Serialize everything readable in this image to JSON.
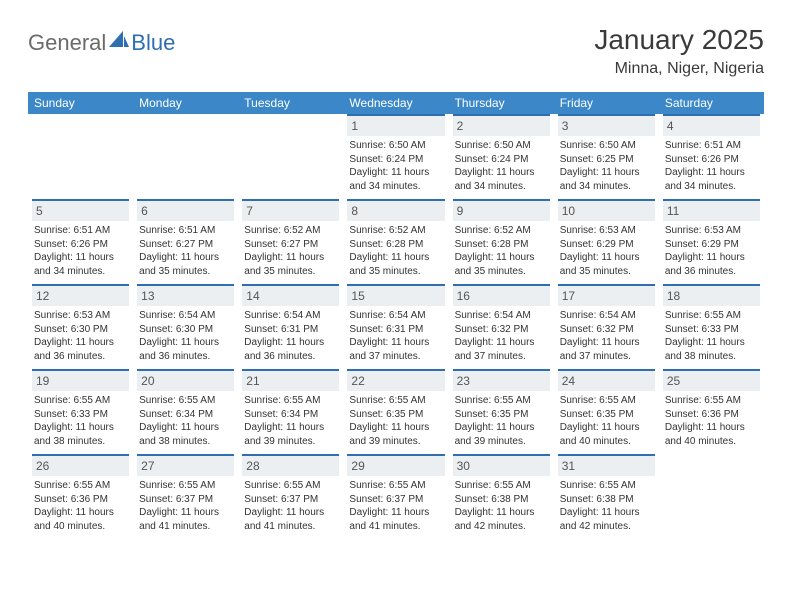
{
  "logo": {
    "text1": "General",
    "text2": "Blue"
  },
  "title": "January 2025",
  "location": "Minna, Niger, Nigeria",
  "colors": {
    "header_bg": "#3b87c8",
    "header_text": "#ffffff",
    "daynum_bg": "#eceff1",
    "daynum_border": "#2f6fb0",
    "logo_gray": "#6b6b6b",
    "logo_blue": "#2f6fb0",
    "text": "#333333"
  },
  "day_names": [
    "Sunday",
    "Monday",
    "Tuesday",
    "Wednesday",
    "Thursday",
    "Friday",
    "Saturday"
  ],
  "weeks": [
    [
      null,
      null,
      null,
      {
        "n": "1",
        "sr": "6:50 AM",
        "ss": "6:24 PM",
        "dl": "11 hours and 34 minutes."
      },
      {
        "n": "2",
        "sr": "6:50 AM",
        "ss": "6:24 PM",
        "dl": "11 hours and 34 minutes."
      },
      {
        "n": "3",
        "sr": "6:50 AM",
        "ss": "6:25 PM",
        "dl": "11 hours and 34 minutes."
      },
      {
        "n": "4",
        "sr": "6:51 AM",
        "ss": "6:26 PM",
        "dl": "11 hours and 34 minutes."
      }
    ],
    [
      {
        "n": "5",
        "sr": "6:51 AM",
        "ss": "6:26 PM",
        "dl": "11 hours and 34 minutes."
      },
      {
        "n": "6",
        "sr": "6:51 AM",
        "ss": "6:27 PM",
        "dl": "11 hours and 35 minutes."
      },
      {
        "n": "7",
        "sr": "6:52 AM",
        "ss": "6:27 PM",
        "dl": "11 hours and 35 minutes."
      },
      {
        "n": "8",
        "sr": "6:52 AM",
        "ss": "6:28 PM",
        "dl": "11 hours and 35 minutes."
      },
      {
        "n": "9",
        "sr": "6:52 AM",
        "ss": "6:28 PM",
        "dl": "11 hours and 35 minutes."
      },
      {
        "n": "10",
        "sr": "6:53 AM",
        "ss": "6:29 PM",
        "dl": "11 hours and 35 minutes."
      },
      {
        "n": "11",
        "sr": "6:53 AM",
        "ss": "6:29 PM",
        "dl": "11 hours and 36 minutes."
      }
    ],
    [
      {
        "n": "12",
        "sr": "6:53 AM",
        "ss": "6:30 PM",
        "dl": "11 hours and 36 minutes."
      },
      {
        "n": "13",
        "sr": "6:54 AM",
        "ss": "6:30 PM",
        "dl": "11 hours and 36 minutes."
      },
      {
        "n": "14",
        "sr": "6:54 AM",
        "ss": "6:31 PM",
        "dl": "11 hours and 36 minutes."
      },
      {
        "n": "15",
        "sr": "6:54 AM",
        "ss": "6:31 PM",
        "dl": "11 hours and 37 minutes."
      },
      {
        "n": "16",
        "sr": "6:54 AM",
        "ss": "6:32 PM",
        "dl": "11 hours and 37 minutes."
      },
      {
        "n": "17",
        "sr": "6:54 AM",
        "ss": "6:32 PM",
        "dl": "11 hours and 37 minutes."
      },
      {
        "n": "18",
        "sr": "6:55 AM",
        "ss": "6:33 PM",
        "dl": "11 hours and 38 minutes."
      }
    ],
    [
      {
        "n": "19",
        "sr": "6:55 AM",
        "ss": "6:33 PM",
        "dl": "11 hours and 38 minutes."
      },
      {
        "n": "20",
        "sr": "6:55 AM",
        "ss": "6:34 PM",
        "dl": "11 hours and 38 minutes."
      },
      {
        "n": "21",
        "sr": "6:55 AM",
        "ss": "6:34 PM",
        "dl": "11 hours and 39 minutes."
      },
      {
        "n": "22",
        "sr": "6:55 AM",
        "ss": "6:35 PM",
        "dl": "11 hours and 39 minutes."
      },
      {
        "n": "23",
        "sr": "6:55 AM",
        "ss": "6:35 PM",
        "dl": "11 hours and 39 minutes."
      },
      {
        "n": "24",
        "sr": "6:55 AM",
        "ss": "6:35 PM",
        "dl": "11 hours and 40 minutes."
      },
      {
        "n": "25",
        "sr": "6:55 AM",
        "ss": "6:36 PM",
        "dl": "11 hours and 40 minutes."
      }
    ],
    [
      {
        "n": "26",
        "sr": "6:55 AM",
        "ss": "6:36 PM",
        "dl": "11 hours and 40 minutes."
      },
      {
        "n": "27",
        "sr": "6:55 AM",
        "ss": "6:37 PM",
        "dl": "11 hours and 41 minutes."
      },
      {
        "n": "28",
        "sr": "6:55 AM",
        "ss": "6:37 PM",
        "dl": "11 hours and 41 minutes."
      },
      {
        "n": "29",
        "sr": "6:55 AM",
        "ss": "6:37 PM",
        "dl": "11 hours and 41 minutes."
      },
      {
        "n": "30",
        "sr": "6:55 AM",
        "ss": "6:38 PM",
        "dl": "11 hours and 42 minutes."
      },
      {
        "n": "31",
        "sr": "6:55 AM",
        "ss": "6:38 PM",
        "dl": "11 hours and 42 minutes."
      },
      null
    ]
  ],
  "labels": {
    "sunrise": "Sunrise:",
    "sunset": "Sunset:",
    "daylight": "Daylight:"
  }
}
